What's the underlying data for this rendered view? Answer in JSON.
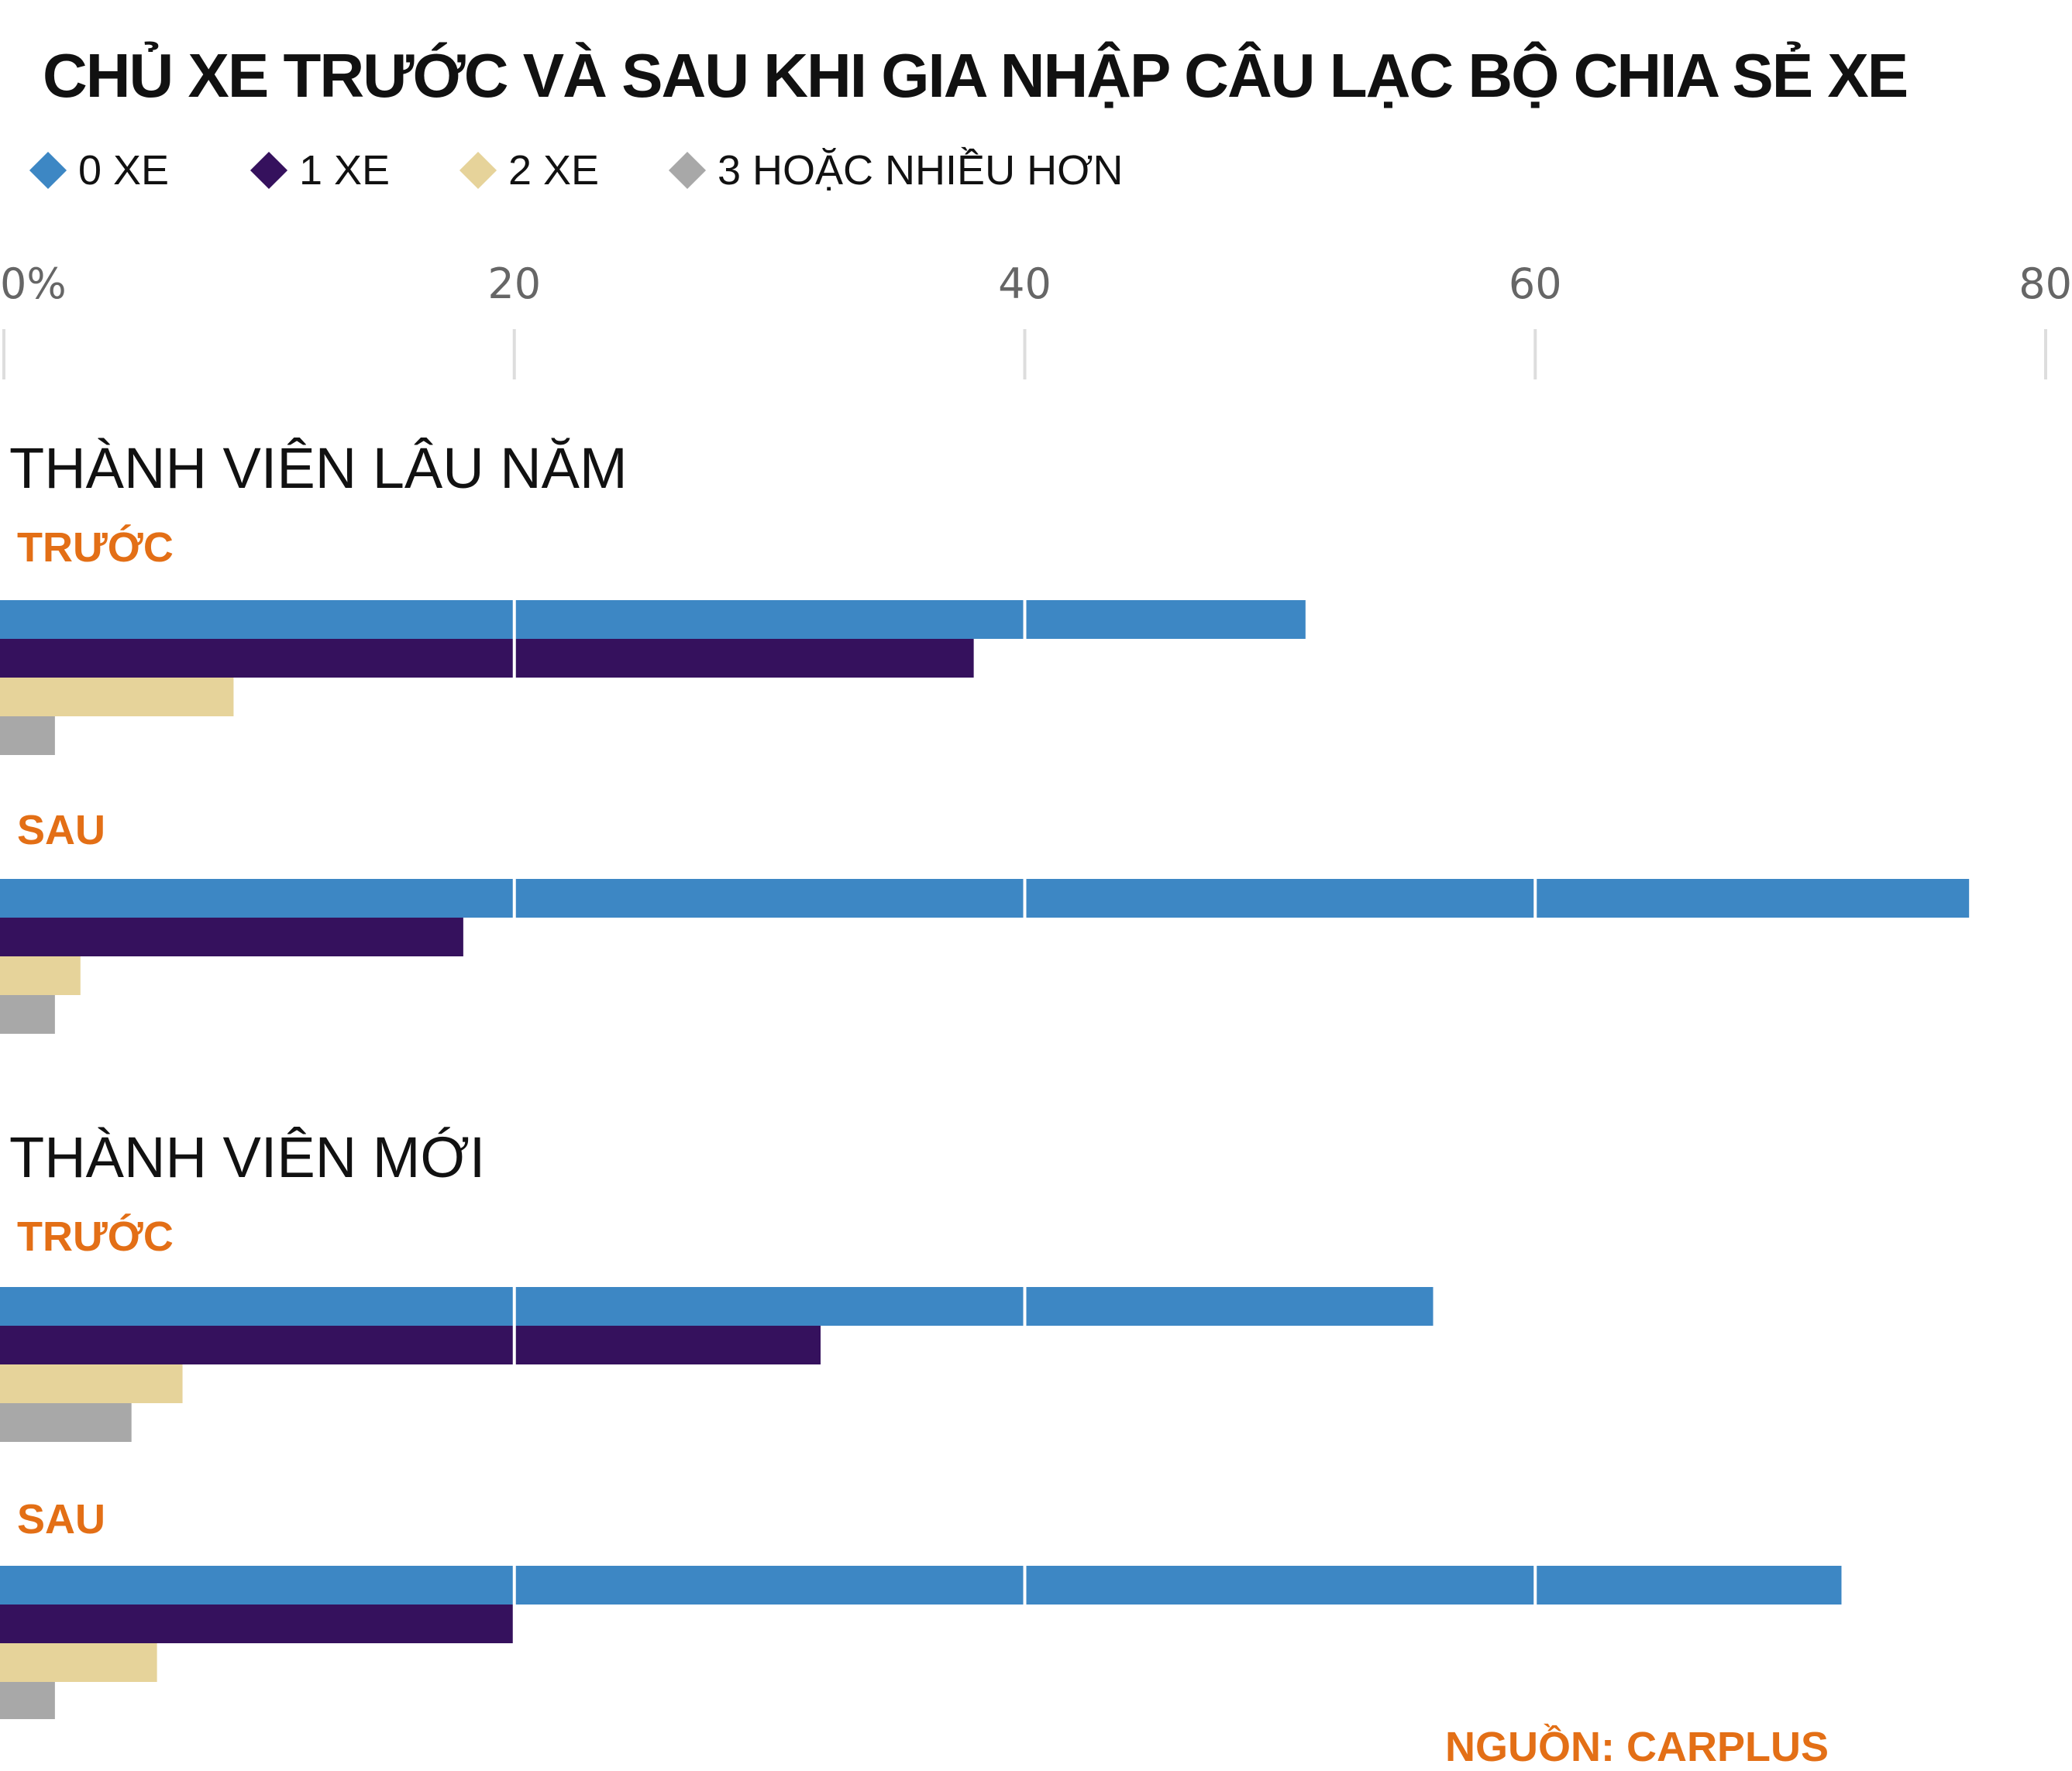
{
  "title": "CHỦ XE TRƯỚC VÀ SAU KHI GIA NHẬP CÂU LẠC BỘ CHIA SẺ XE",
  "source": "NGUỒN: CARPLUS",
  "legend": [
    {
      "label": "0 XE",
      "color": "#3d87c4"
    },
    {
      "label": "1 XE",
      "color": "#35115d"
    },
    {
      "label": "2 XE",
      "color": "#e6d39a"
    },
    {
      "label": "3 HOẶC NHIỀU HƠN",
      "color": "#a8a8a8"
    }
  ],
  "chart_data": {
    "type": "bar",
    "orientation": "horizontal",
    "xlim": [
      0,
      80
    ],
    "xticks": [
      0,
      20,
      40,
      60,
      80
    ],
    "xtick_labels": [
      "0%",
      "20",
      "40",
      "60",
      "80"
    ],
    "series_names": [
      "0 XE",
      "1 XE",
      "2 XE",
      "3 HOẶC NHIỀU HƠN"
    ],
    "groups": [
      {
        "title": "THÀNH VIÊN LÂU NĂM",
        "subgroups": [
          {
            "label": "TRƯỚC",
            "values": [
              51,
              38,
              9,
              2
            ]
          },
          {
            "label": "SAU",
            "values": [
              77,
              18,
              3,
              2
            ]
          }
        ]
      },
      {
        "title": "THÀNH VIÊN MỚI",
        "subgroups": [
          {
            "label": "TRƯỚC",
            "values": [
              56,
              32,
              7,
              5
            ]
          },
          {
            "label": "SAU",
            "values": [
              72,
              20,
              6,
              2
            ]
          }
        ]
      }
    ]
  }
}
